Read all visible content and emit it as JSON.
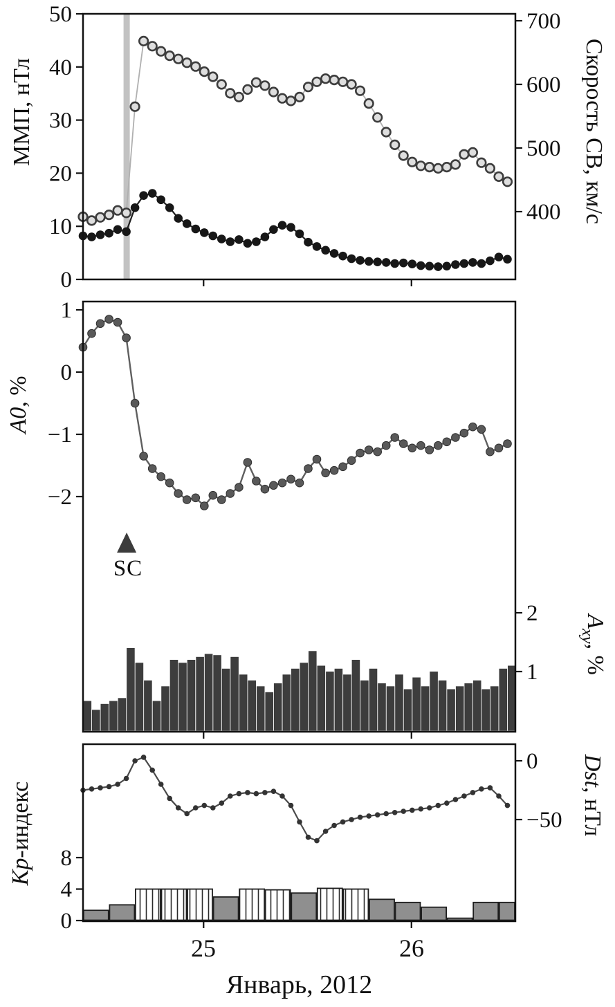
{
  "figure": {
    "xlabel": "Январь, 2012",
    "x_tick_labels": [
      "25",
      "26"
    ],
    "sc_annotation": "SC",
    "colors": {
      "frame": "#111111",
      "imf_line": "#1f1f1f",
      "imf_marker": "#171717",
      "speed_line": "#b0b0b0",
      "speed_marker_fill": "#dedede",
      "speed_marker_stroke": "#3d3d3d",
      "a0_line": "#5f5f5f",
      "a0_marker": "#595959",
      "axy_bar": "#3d3d3d",
      "kp_bar_gray": "#8f8f8f",
      "kp_bar_stroke": "#1f1f1f",
      "dst_line": "#4a4a4a",
      "dst_marker": "#333333",
      "sc_band": "#c2c2c2",
      "sc_triangle": "#3c3c3c"
    }
  },
  "chart_data": [
    {
      "type": "line",
      "panel": "top",
      "x_unit": "день января 2012",
      "x_range": [
        24.42,
        26.5
      ],
      "x_ticks": [
        25,
        26
      ],
      "sc_time": 24.63,
      "left_axis": {
        "label": "ММП, нТл",
        "range": [
          0,
          50
        ],
        "ticks": [
          0,
          10,
          20,
          30,
          40,
          50
        ]
      },
      "right_axis": {
        "label": "Скорость СВ, км/с",
        "range": [
          400,
          700
        ],
        "ticks": [
          400,
          500,
          600,
          700
        ]
      },
      "series": [
        {
          "name": "ММП, нТл",
          "axis": "left",
          "style": "filled-circle-line",
          "x_start": 24.42,
          "x_step_days": 0.041667,
          "values": [
            8.2,
            8.0,
            8.4,
            8.7,
            9.4,
            9.0,
            13.5,
            15.8,
            16.2,
            15.0,
            13.5,
            11.5,
            10.5,
            9.5,
            8.8,
            8.2,
            7.6,
            7.1,
            7.5,
            6.8,
            7.1,
            8.0,
            9.4,
            10.2,
            9.8,
            8.6,
            7.0,
            6.2,
            5.5,
            4.9,
            4.4,
            3.9,
            3.6,
            3.4,
            3.3,
            3.2,
            3.0,
            3.1,
            2.9,
            2.6,
            2.5,
            2.4,
            2.5,
            2.8,
            3.0,
            3.2,
            3.0,
            3.5,
            4.2,
            3.8
          ]
        },
        {
          "name": "Скорость СВ, км/с",
          "axis": "right",
          "style": "open-circle-line",
          "x_start": 24.42,
          "x_step_days": 0.041667,
          "values": [
            392,
            386,
            391,
            395,
            402,
            398,
            565,
            668,
            660,
            652,
            645,
            640,
            634,
            628,
            620,
            612,
            600,
            586,
            580,
            592,
            603,
            598,
            588,
            578,
            574,
            580,
            596,
            604,
            609,
            607,
            604,
            600,
            590,
            570,
            548,
            525,
            505,
            488,
            478,
            472,
            470,
            468,
            470,
            474,
            490,
            493,
            477,
            468,
            455,
            447
          ]
        }
      ]
    },
    {
      "type": "line+bar",
      "panel": "middle",
      "x_range": [
        24.42,
        26.5
      ],
      "x_ticks": [
        25,
        26
      ],
      "sc_marker_time": 24.63,
      "left_axis": {
        "label": "A0, %",
        "label_var": "A0",
        "label_unit": ", %",
        "ticks": [
          1,
          0,
          -1,
          -2
        ]
      },
      "right_axis": {
        "label": "Axy, %",
        "label_var": "A",
        "label_sub": "xy",
        "label_unit": ", %",
        "ticks": [
          2,
          1
        ]
      },
      "series": [
        {
          "name": "A0, %",
          "axis": "left",
          "style": "gray-circle-line",
          "x_start": 24.42,
          "x_step_days": 0.041667,
          "values": [
            0.4,
            0.62,
            0.78,
            0.85,
            0.8,
            0.55,
            -0.5,
            -1.35,
            -1.55,
            -1.68,
            -1.78,
            -1.95,
            -2.05,
            -2.02,
            -2.15,
            -1.98,
            -2.05,
            -1.95,
            -1.85,
            -1.45,
            -1.75,
            -1.88,
            -1.82,
            -1.78,
            -1.72,
            -1.78,
            -1.55,
            -1.4,
            -1.62,
            -1.58,
            -1.52,
            -1.42,
            -1.3,
            -1.25,
            -1.28,
            -1.18,
            -1.05,
            -1.15,
            -1.22,
            -1.18,
            -1.25,
            -1.18,
            -1.12,
            -1.05,
            -0.98,
            -0.88,
            -0.92,
            -1.28,
            -1.22,
            -1.15
          ]
        },
        {
          "name": "Axy, %",
          "axis": "right",
          "style": "bar",
          "x_start": 24.42,
          "x_step_days": 0.041667,
          "values": [
            0.5,
            0.35,
            0.45,
            0.5,
            0.55,
            1.4,
            1.15,
            0.85,
            0.5,
            0.75,
            1.2,
            1.15,
            1.2,
            1.25,
            1.3,
            1.28,
            1.05,
            1.25,
            0.95,
            0.85,
            0.75,
            0.65,
            0.8,
            0.95,
            1.05,
            1.15,
            1.35,
            1.1,
            1.0,
            1.05,
            0.95,
            1.2,
            0.85,
            1.05,
            0.8,
            0.75,
            0.95,
            0.7,
            0.9,
            0.75,
            1.0,
            0.85,
            0.7,
            0.75,
            0.8,
            0.85,
            0.7,
            0.75,
            1.05,
            1.1
          ]
        }
      ]
    },
    {
      "type": "line+bar",
      "panel": "bottom",
      "x_range": [
        24.42,
        26.5
      ],
      "x_ticks": [
        25,
        26
      ],
      "left_axis": {
        "label": "Кр-индекс",
        "label_var": "Кр",
        "label_unit": "-индекс",
        "ticks": [
          0,
          4,
          8
        ]
      },
      "right_axis": {
        "label": "Dst, нТл",
        "label_var": "Dst",
        "label_unit": ", нТл",
        "ticks": [
          0,
          -50
        ]
      },
      "series": [
        {
          "name": "Кр-индекс",
          "axis": "left",
          "style": "kp-bar",
          "x_start": 24.42,
          "x_step_days": 0.125,
          "values": [
            1.3,
            2.0,
            4.0,
            4.0,
            4.0,
            3.0,
            4.0,
            3.9,
            3.5,
            4.1,
            4.0,
            2.7,
            2.3,
            1.7,
            0.3,
            2.3,
            2.3
          ],
          "open_flags": [
            false,
            false,
            true,
            true,
            true,
            false,
            true,
            true,
            false,
            true,
            true,
            false,
            false,
            false,
            false,
            false,
            false
          ]
        },
        {
          "name": "Dst, нТл",
          "axis": "right",
          "style": "dot-line",
          "x_start": 24.42,
          "x_step_days": 0.041667,
          "values": [
            -25,
            -24,
            -23,
            -22,
            -20,
            -15,
            0,
            3,
            -8,
            -20,
            -32,
            -40,
            -45,
            -40,
            -38,
            -40,
            -36,
            -30,
            -28,
            -27,
            -28,
            -27,
            -26,
            -30,
            -38,
            -52,
            -65,
            -68,
            -60,
            -55,
            -52,
            -50,
            -48,
            -47,
            -46,
            -45,
            -44,
            -43,
            -42,
            -41,
            -40,
            -38,
            -36,
            -33,
            -30,
            -27,
            -24,
            -23,
            -30,
            -38
          ]
        }
      ]
    }
  ]
}
